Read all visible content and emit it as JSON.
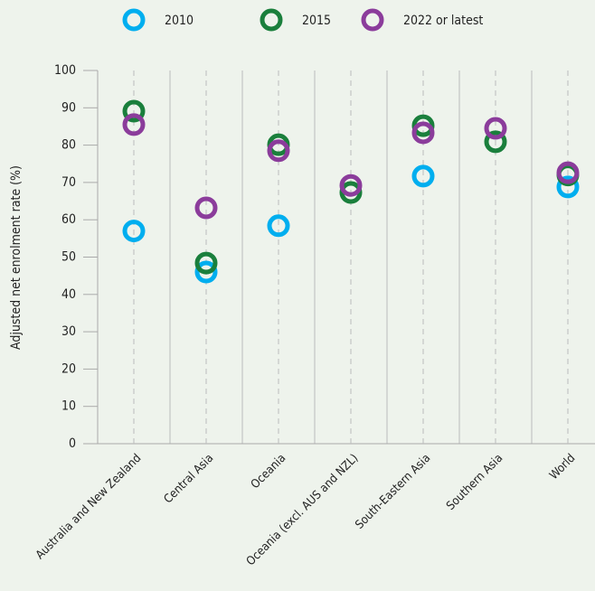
{
  "chart_data": {
    "type": "dot",
    "y_label": "Adjusted net enrolment rate (%)",
    "categories": [
      "Australia and New Zealand",
      "Central Asia",
      "Oceania",
      "Oceania (excl. AUS and NZL)",
      "South-Eastern Asia",
      "Southern Asia",
      "World"
    ],
    "series": [
      {
        "name": "2010",
        "color": "#00aeef",
        "values": [
          57,
          46,
          58.4,
          null,
          71.7,
          null,
          68.8
        ]
      },
      {
        "name": "2015",
        "color": "#1a7f3c",
        "values": [
          89.1,
          48.4,
          80.1,
          67.3,
          85.2,
          80.9,
          72
        ]
      },
      {
        "name": "2022 or latest",
        "color": "#8b3c9b",
        "values": [
          85.5,
          63.2,
          78.5,
          69.2,
          83.3,
          84.5,
          72.6
        ]
      }
    ],
    "ylim": [
      0,
      100
    ],
    "yticks": [
      0,
      10,
      20,
      30,
      40,
      50,
      60,
      70,
      80,
      90,
      100
    ],
    "grid": true
  }
}
